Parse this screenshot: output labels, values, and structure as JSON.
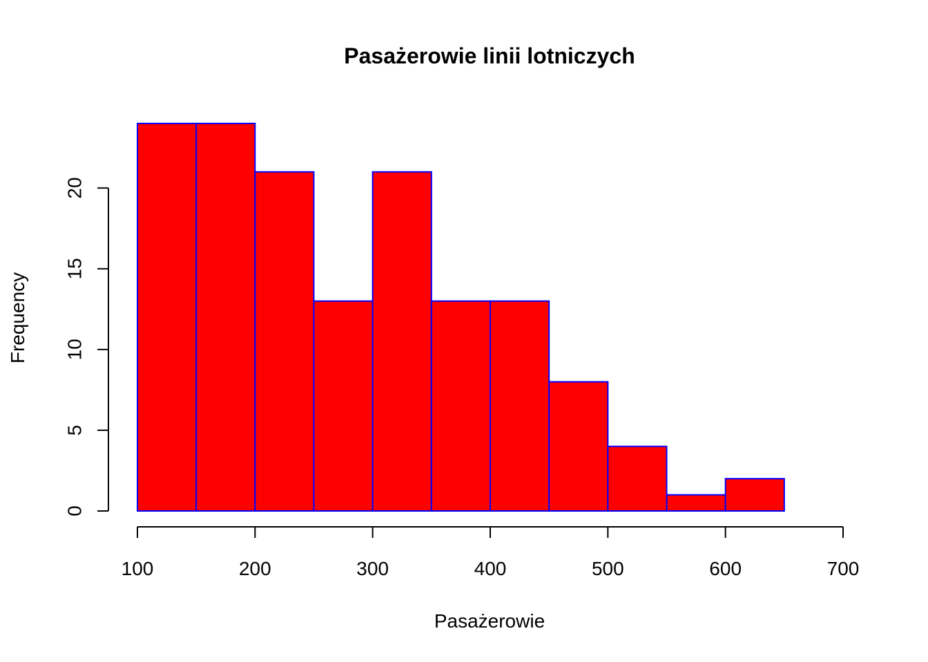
{
  "chart_data": {
    "type": "bar",
    "subtype": "histogram",
    "title": "Pasażerowie linii lotniczych",
    "xlabel": "Pasażerowie",
    "ylabel": "Frequency",
    "bins": [
      {
        "from": 100,
        "to": 150,
        "count": 24
      },
      {
        "from": 150,
        "to": 200,
        "count": 24
      },
      {
        "from": 200,
        "to": 250,
        "count": 21
      },
      {
        "from": 250,
        "to": 300,
        "count": 13
      },
      {
        "from": 300,
        "to": 350,
        "count": 21
      },
      {
        "from": 350,
        "to": 400,
        "count": 13
      },
      {
        "from": 400,
        "to": 450,
        "count": 13
      },
      {
        "from": 450,
        "to": 500,
        "count": 8
      },
      {
        "from": 500,
        "to": 550,
        "count": 4
      },
      {
        "from": 550,
        "to": 600,
        "count": 1
      },
      {
        "from": 600,
        "to": 650,
        "count": 2
      }
    ],
    "xlim": [
      100,
      700
    ],
    "ylim": [
      0,
      24
    ],
    "x_ticks": [
      100,
      200,
      300,
      400,
      500,
      600,
      700
    ],
    "y_ticks": [
      0,
      5,
      10,
      15,
      20
    ],
    "x_tick_labels": [
      "100",
      "200",
      "300",
      "400",
      "500",
      "600",
      "700"
    ],
    "y_tick_labels": [
      "0",
      "5",
      "10",
      "15",
      "20"
    ],
    "colors": {
      "fill": "#ff0000",
      "border": "#0000ff"
    },
    "grid": false,
    "legend": false
  }
}
